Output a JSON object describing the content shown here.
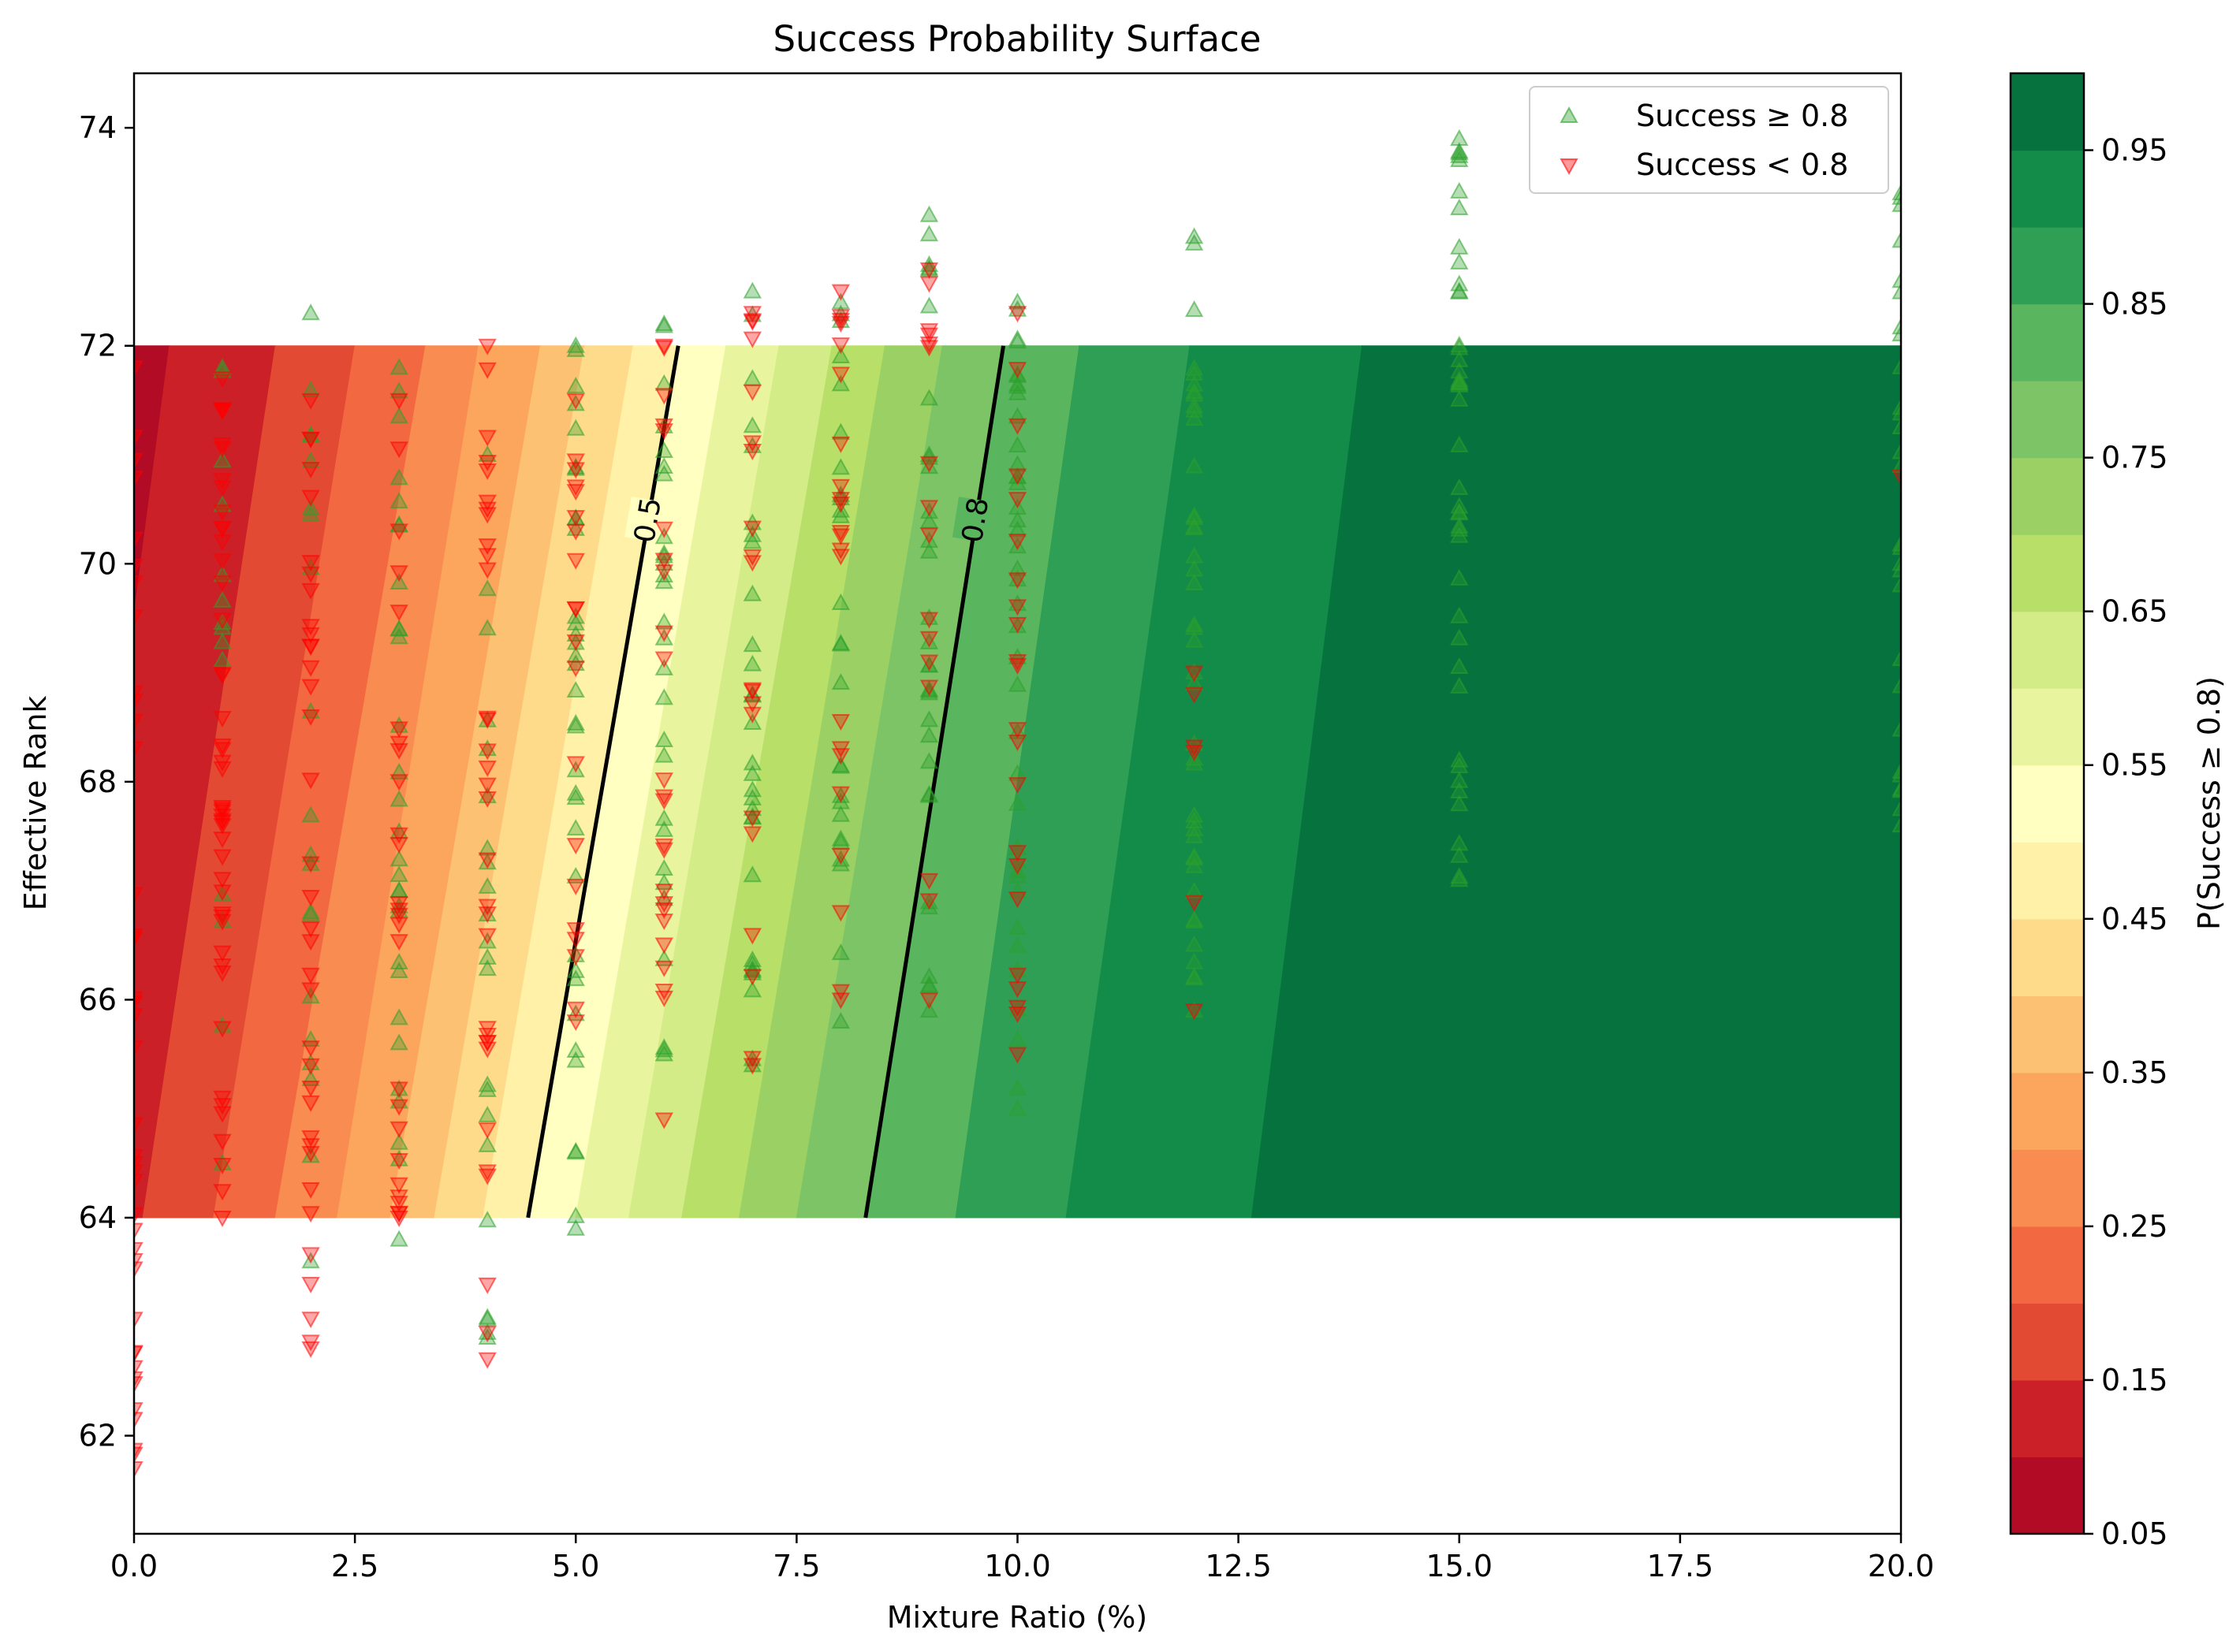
{
  "chart_data": {
    "type": "contour_scatter",
    "title": "Success Probability Surface",
    "xlabel": "Mixture Ratio (%)",
    "ylabel": "Effective Rank",
    "xlim": [
      0,
      20
    ],
    "ylim": [
      61.1,
      74.5
    ],
    "xticks": [
      0,
      2.5,
      5,
      7.5,
      10,
      12.5,
      15,
      17.5,
      20
    ],
    "xtick_labels": [
      "0.0",
      "2.5",
      "5.0",
      "7.5",
      "10.0",
      "12.5",
      "15.0",
      "17.5",
      "20.0"
    ],
    "yticks": [
      62,
      64,
      66,
      68,
      70,
      72,
      74
    ],
    "ytick_labels": [
      "62",
      "64",
      "66",
      "68",
      "70",
      "72",
      "74"
    ],
    "surface": {
      "x_range": [
        0,
        20
      ],
      "y_range": [
        64,
        72
      ],
      "levels": [
        0.05,
        0.1,
        0.15,
        0.2,
        0.25,
        0.3,
        0.35,
        0.4,
        0.45,
        0.5,
        0.55,
        0.6,
        0.65,
        0.7,
        0.75,
        0.8,
        0.85,
        0.9,
        0.95,
        1.0
      ],
      "level_colors": [
        "#b10b26",
        "#cb2027",
        "#e34a33",
        "#f26841",
        "#f88c51",
        "#fca55d",
        "#fdc173",
        "#fedb8b",
        "#fff1a8",
        "#ffffc2",
        "#e8f59e",
        "#d3ec87",
        "#b8e069",
        "#9bd164",
        "#7dc466",
        "#5ab55f",
        "#2e9f55",
        "#138c49",
        "#06733e"
      ],
      "boundaries": [
        {
          "level": 0.1,
          "x_at_64": -0.9,
          "x_at_72": 0.4
        },
        {
          "level": 0.15,
          "x_at_64": 0.1,
          "x_at_72": 1.6
        },
        {
          "level": 0.2,
          "x_at_64": 0.9,
          "x_at_72": 2.5
        },
        {
          "level": 0.25,
          "x_at_64": 1.6,
          "x_at_72": 3.3
        },
        {
          "level": 0.3,
          "x_at_64": 2.3,
          "x_at_72": 3.9
        },
        {
          "level": 0.35,
          "x_at_64": 2.9,
          "x_at_72": 4.6
        },
        {
          "level": 0.4,
          "x_at_64": 3.4,
          "x_at_72": 5.1
        },
        {
          "level": 0.45,
          "x_at_64": 3.95,
          "x_at_72": 5.65
        },
        {
          "level": 0.5,
          "x_at_64": 4.46,
          "x_at_72": 6.16
        },
        {
          "level": 0.55,
          "x_at_64": 5.0,
          "x_at_72": 6.7
        },
        {
          "level": 0.6,
          "x_at_64": 5.6,
          "x_at_72": 7.3
        },
        {
          "level": 0.65,
          "x_at_64": 6.2,
          "x_at_72": 7.9
        },
        {
          "level": 0.7,
          "x_at_64": 6.85,
          "x_at_72": 8.5
        },
        {
          "level": 0.75,
          "x_at_64": 7.5,
          "x_at_72": 9.15
        },
        {
          "level": 0.8,
          "x_at_64": 8.28,
          "x_at_72": 9.84
        },
        {
          "level": 0.85,
          "x_at_64": 9.3,
          "x_at_72": 10.7
        },
        {
          "level": 0.9,
          "x_at_64": 10.55,
          "x_at_72": 11.95
        },
        {
          "level": 0.95,
          "x_at_64": 12.65,
          "x_at_72": 13.9
        }
      ],
      "contour_lines": [
        {
          "level": 0.5,
          "label": "0.5",
          "x_at_64": 4.46,
          "x_at_72": 6.16,
          "label_y": 70.4
        },
        {
          "level": 0.8,
          "label": "0.8",
          "x_at_64": 8.28,
          "x_at_72": 9.84,
          "label_y": 70.4
        }
      ]
    },
    "series": [
      {
        "name": "Success ≥ 0.8",
        "marker": "triangle-up",
        "color": "#2ca02c",
        "points": [
          {
            "x": 1,
            "y_range": [
              64.5,
              71.8
            ],
            "n": 14
          },
          {
            "x": 2,
            "y_range": [
              63.6,
              72.3
            ],
            "n": 20
          },
          {
            "x": 3,
            "y_range": [
              63.8,
              71.8
            ],
            "n": 30
          },
          {
            "x": 4,
            "y_range": [
              62.9,
              71.0
            ],
            "n": 22
          },
          {
            "x": 5,
            "y_range": [
              63.9,
              72.0
            ],
            "n": 34
          },
          {
            "x": 6,
            "y_range": [
              65.5,
              72.2
            ],
            "n": 28
          },
          {
            "x": 7,
            "y_range": [
              65.4,
              72.5
            ],
            "n": 30
          },
          {
            "x": 8,
            "y_range": [
              65.8,
              72.4
            ],
            "n": 26
          },
          {
            "x": 9,
            "y_range": [
              65.9,
              73.2
            ],
            "n": 32
          },
          {
            "x": 10,
            "y_range": [
              65.0,
              72.4
            ],
            "n": 40
          },
          {
            "x": 12,
            "y_range": [
              65.9,
              73.0
            ],
            "n": 42
          },
          {
            "x": 15,
            "y_range": [
              67.1,
              73.9
            ],
            "n": 44
          },
          {
            "x": 20,
            "y_range": [
              67.6,
              73.4
            ],
            "n": 28
          }
        ]
      },
      {
        "name": "Success < 0.8",
        "marker": "triangle-down",
        "color": "#ff0000",
        "points": [
          {
            "x": 0,
            "y_range": [
              61.7,
              71.8
            ],
            "n": 40
          },
          {
            "x": 1,
            "y_range": [
              64.0,
              71.7
            ],
            "n": 48
          },
          {
            "x": 2,
            "y_range": [
              62.8,
              71.5
            ],
            "n": 36
          },
          {
            "x": 3,
            "y_range": [
              64.0,
              71.5
            ],
            "n": 26
          },
          {
            "x": 4,
            "y_range": [
              62.7,
              72.0
            ],
            "n": 32
          },
          {
            "x": 5,
            "y_range": [
              65.8,
              71.5
            ],
            "n": 20
          },
          {
            "x": 6,
            "y_range": [
              64.9,
              72.0
            ],
            "n": 24
          },
          {
            "x": 7,
            "y_range": [
              65.4,
              72.3
            ],
            "n": 20
          },
          {
            "x": 8,
            "y_range": [
              66.0,
              72.5
            ],
            "n": 22
          },
          {
            "x": 9,
            "y_range": [
              66.0,
              72.7
            ],
            "n": 16
          },
          {
            "x": 10,
            "y_range": [
              65.5,
              72.3
            ],
            "n": 22
          },
          {
            "x": 12,
            "y_range": [
              65.9,
              69.0
            ],
            "n": 6
          },
          {
            "x": 20,
            "y_range": [
              70.8,
              70.9
            ],
            "n": 1
          }
        ]
      }
    ],
    "legend": {
      "position": "upper right",
      "entries": [
        "Success ≥ 0.8",
        "Success < 0.8"
      ]
    },
    "colorbar": {
      "label": "P(Success ≥ 0.8)",
      "range": [
        0.05,
        1.0
      ],
      "ticks": [
        0.05,
        0.15,
        0.25,
        0.35,
        0.45,
        0.55,
        0.65,
        0.75,
        0.85,
        0.95
      ],
      "tick_labels": [
        "0.05",
        "0.15",
        "0.25",
        "0.35",
        "0.45",
        "0.55",
        "0.65",
        "0.75",
        "0.85",
        "0.95"
      ]
    }
  }
}
